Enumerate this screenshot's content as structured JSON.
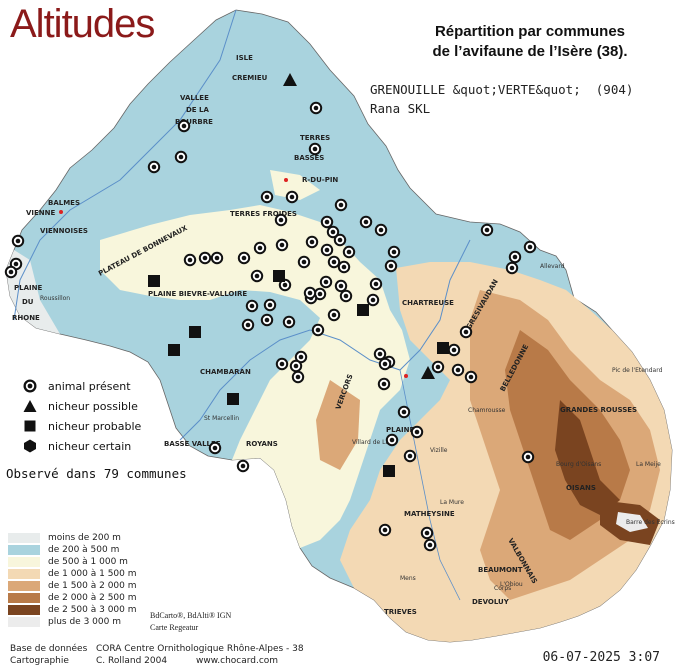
{
  "title": "Altitudes",
  "heading_line1": "Répartition par communes",
  "heading_line2": "de l’avifaune de l’Isère (38).",
  "species_line1": "GRENOUILLE &quot;VERTE&quot;  (904)",
  "species_line2": "Rana SKL",
  "legend": {
    "present": "animal présent",
    "possible": "nicheur possible",
    "probable": "nicheur probable",
    "certain": "nicheur certain"
  },
  "observed": "Observé dans 79 communes",
  "altitude_legend": [
    {
      "label": "moins de 200 m",
      "color": "#e8ecec"
    },
    {
      "label": "de 200 à 500 m",
      "color": "#a9d3de"
    },
    {
      "label": "de 500 à 1 000 m",
      "color": "#f8f6dc"
    },
    {
      "label": "de 1 000 à 1 500 m",
      "color": "#f3d9b4"
    },
    {
      "label": "de 1 500 à 2 000 m",
      "color": "#dba878"
    },
    {
      "label": "de 2 000 à 2 500 m",
      "color": "#b87a48"
    },
    {
      "label": "de 2 500 à 3 000 m",
      "color": "#7a4420"
    },
    {
      "label": "plus de 3 000 m",
      "color": "#ececec"
    }
  ],
  "credits": {
    "ign1": "BdCarto®, BdAlti® IGN",
    "ign2": "Carte Regeatur",
    "base_label": "Base de données",
    "base_value": "CORA Centre Ornithologique Rhône-Alpes - 38",
    "carto_label": "Cartographie",
    "carto_value": "C. Rolland 2004",
    "url": "www.chocard.com"
  },
  "date": "06-07-2025 3:07",
  "places": {
    "vienne": "VIENNE",
    "balmes": "BALMES",
    "viennoises": "VIENNOISES",
    "isle": "ISLE",
    "cremieu": "CREMIEU",
    "vallee": "VALLEE",
    "de_la": "DE LA",
    "bourbre": "BOURBRE",
    "terres": "TERRES",
    "basses": "BASSES",
    "pin": "R-DU-PIN",
    "terres_froides": "TERRES FROIDES",
    "plateau": "PLATEAU DE BONNEVAUX",
    "plaine_bievre": "PLAINE BIEVRE-VALLOIRE",
    "plaine_rhone1": "PLAINE",
    "plaine_rhone2": "DU",
    "plaine_rhone3": "RHONE",
    "chambaran": "CHAMBARAN",
    "basse_vallee": "BASSE VALLEE",
    "royans": "ROYANS",
    "vercors": "VERCORS",
    "chartreuse": "CHARTREUSE",
    "gresivaudan": "GRESIVAUDAN",
    "belledonne": "BELLEDONNE",
    "grandes_rousses": "GRANDES ROUSSES",
    "oisans": "OISANS",
    "matheysine": "MATHEYSINE",
    "beaumont": "BEAUMONT",
    "devoluy": "DEVOLUY",
    "trieves": "TRIEVES",
    "valbonnais": "VALBONNAIS",
    "plaine_isere": "PLAINE",
    "roussillon": "Roussillon",
    "st_marcellin": "St Marcellin",
    "allevard": "Allevard",
    "chamrousse": "Chamrousse",
    "vizille": "Vizille",
    "corps": "Corps",
    "mens": "Mens",
    "la_mure": "La Mure",
    "villard": "Villard de Lans",
    "bourg": "Bourg d'Oisans",
    "meije": "La Meije",
    "ecrins": "Barre des Ecrins",
    "obiou": "L'Obiou",
    "vaujany": "Pic de l'Etendard"
  }
}
